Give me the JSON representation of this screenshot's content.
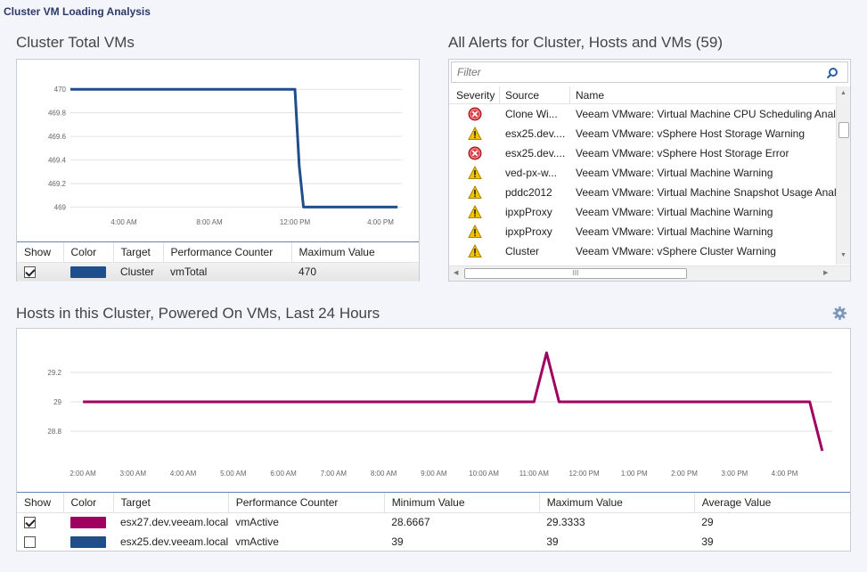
{
  "page": {
    "title": "Cluster VM Loading Analysis"
  },
  "cluster_vms": {
    "title": "Cluster Total VMs",
    "legend": {
      "headers": {
        "show": "Show",
        "color": "Color",
        "target": "Target",
        "counter": "Performance Counter",
        "max": "Maximum Value"
      },
      "rows": [
        {
          "show": true,
          "color": "#1f4e8c",
          "target": "Cluster",
          "counter": "vmTotal",
          "max": "470"
        }
      ]
    }
  },
  "alerts": {
    "title": "All Alerts for Cluster, Hosts and VMs (59)",
    "filter_placeholder": "Filter",
    "headers": {
      "severity": "Severity",
      "source": "Source",
      "name": "Name"
    },
    "rows": [
      {
        "severity": "error",
        "source": "Clone Wi...",
        "name": "Veeam VMware: Virtual Machine CPU Scheduling Analy"
      },
      {
        "severity": "warning",
        "source": "esx25.dev....",
        "name": "Veeam VMware: vSphere Host Storage Warning"
      },
      {
        "severity": "error",
        "source": "esx25.dev....",
        "name": "Veeam VMware: vSphere Host Storage Error"
      },
      {
        "severity": "warning",
        "source": "ved-px-w...",
        "name": "Veeam VMware: Virtual Machine Warning"
      },
      {
        "severity": "warning",
        "source": "pddc2012",
        "name": "Veeam VMware: Virtual Machine Snapshot Usage Analy"
      },
      {
        "severity": "warning",
        "source": "ipxpProxy",
        "name": "Veeam VMware: Virtual Machine Warning"
      },
      {
        "severity": "warning",
        "source": "ipxpProxy",
        "name": "Veeam VMware: Virtual Machine Warning"
      },
      {
        "severity": "warning",
        "source": "Cluster",
        "name": "Veeam VMware: vSphere Cluster Warning"
      }
    ],
    "hscroll_grip": "III"
  },
  "hosts": {
    "title": "Hosts in this Cluster, Powered On VMs, Last 24 Hours",
    "legend": {
      "headers": {
        "show": "Show",
        "color": "Color",
        "target": "Target",
        "counter": "Performance Counter",
        "min": "Minimum Value",
        "max": "Maximum Value",
        "avg": "Average Value"
      },
      "rows": [
        {
          "show": true,
          "color": "#a0005f",
          "target": "esx27.dev.veeam.local",
          "counter": "vmActive",
          "min": "28.6667",
          "max": "29.3333",
          "avg": "29"
        },
        {
          "show": false,
          "color": "#1f4e8c",
          "target": "esx25.dev.veeam.local",
          "counter": "vmActive",
          "min": "39",
          "max": "39",
          "avg": "39"
        }
      ]
    }
  },
  "chart_data": [
    {
      "type": "line",
      "title": "Cluster Total VMs",
      "ylim": [
        468.95,
        470.1
      ],
      "yticks": [
        470,
        469.8,
        469.6,
        469.4,
        469.2,
        469
      ],
      "xlim": [
        1.5,
        17.0
      ],
      "xticks": [
        4,
        8,
        12,
        16
      ],
      "xtick_labels": [
        "4:00 AM",
        "8:00 AM",
        "12:00 PM",
        "4:00 PM"
      ],
      "series": [
        {
          "color": "#1f4e8c",
          "x": [
            1.5,
            12.0,
            12.2,
            12.4,
            16.8
          ],
          "y": [
            470,
            470,
            469.35,
            469,
            469
          ]
        }
      ]
    },
    {
      "type": "line",
      "title": "Hosts in this Cluster, Powered On VMs, Last 24 Hours",
      "ylim": [
        28.6,
        29.4
      ],
      "yticks": [
        29.2,
        29,
        28.8
      ],
      "xlim": [
        1.75,
        16.95
      ],
      "xticks": [
        2,
        3,
        4,
        5,
        6,
        7,
        8,
        9,
        10,
        11,
        12,
        13,
        14,
        15,
        16
      ],
      "xtick_labels": [
        "2:00 AM",
        "3:00 AM",
        "4:00 AM",
        "5:00 AM",
        "6:00 AM",
        "7:00 AM",
        "8:00 AM",
        "9:00 AM",
        "10:00 AM",
        "11:00 AM",
        "12:00 PM",
        "1:00 PM",
        "2:00 PM",
        "3:00 PM",
        "4:00 PM"
      ],
      "series": [
        {
          "color": "#a0005f",
          "x": [
            2.0,
            11.0,
            11.25,
            11.5,
            16.5,
            16.75
          ],
          "y": [
            29,
            29,
            29.3333,
            29,
            29,
            28.6667
          ]
        }
      ]
    }
  ],
  "colors": {
    "error": "#d9363e",
    "warning": "#f2c300",
    "accent_border": "#5f83b4"
  },
  "icons": {
    "search": "search-icon",
    "gear": "gear-icon",
    "error": "error-icon",
    "warning": "warning-icon"
  }
}
